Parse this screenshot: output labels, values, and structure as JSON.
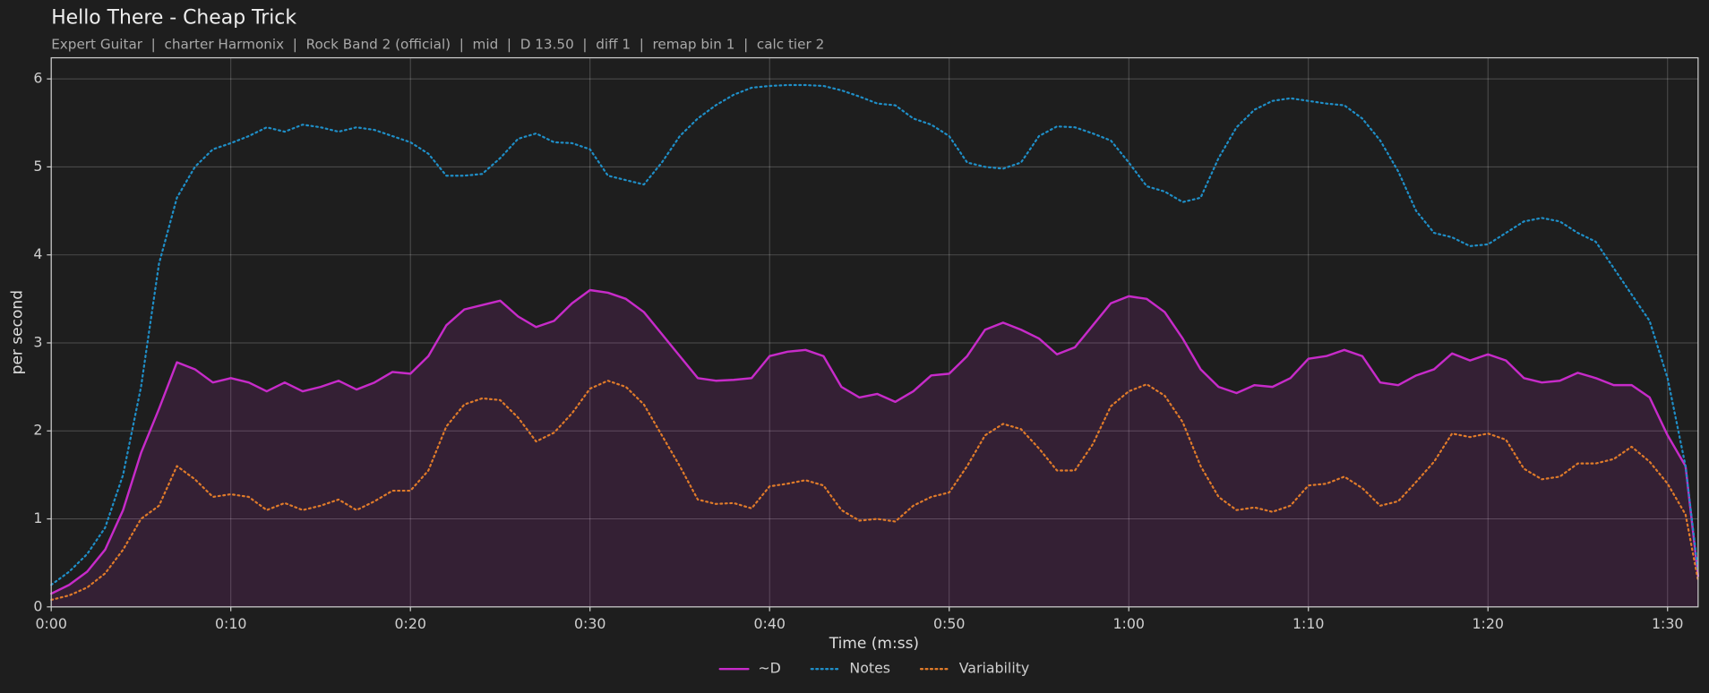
{
  "chart_data": {
    "type": "line",
    "title": "Hello There - Cheap Trick",
    "subtitle": "Expert Guitar  |  charter Harmonix  |  Rock Band 2 (official)  |  mid  |  D 13.50  |  diff 1  |  remap bin 1  |  calc tier 2",
    "xlabel": "Time (m:ss)",
    "ylabel": "per second",
    "x": [
      0,
      1,
      2,
      3,
      4,
      5,
      6,
      7,
      8,
      9,
      10,
      11,
      12,
      13,
      14,
      15,
      16,
      17,
      18,
      19,
      20,
      21,
      22,
      23,
      24,
      25,
      26,
      27,
      28,
      29,
      30,
      31,
      32,
      33,
      34,
      35,
      36,
      37,
      38,
      39,
      40,
      41,
      42,
      43,
      44,
      45,
      46,
      47,
      48,
      49,
      50,
      51,
      52,
      53,
      54,
      55,
      56,
      57,
      58,
      59,
      60,
      61,
      62,
      63,
      64,
      65,
      66,
      67,
      68,
      69,
      70,
      71,
      72,
      73,
      74,
      75,
      76,
      77,
      78,
      79,
      80,
      81,
      82,
      83,
      84,
      85,
      86,
      87,
      88,
      89,
      90,
      91,
      91.7
    ],
    "series": [
      {
        "name": "~D",
        "color": "#c72bc9",
        "style": "solid",
        "fill": true,
        "values": [
          0.15,
          0.25,
          0.4,
          0.65,
          1.1,
          1.75,
          2.25,
          2.78,
          2.7,
          2.55,
          2.6,
          2.55,
          2.45,
          2.55,
          2.45,
          2.5,
          2.57,
          2.47,
          2.55,
          2.67,
          2.65,
          2.85,
          3.2,
          3.38,
          3.43,
          3.48,
          3.3,
          3.18,
          3.25,
          3.45,
          3.6,
          3.57,
          3.5,
          3.35,
          3.1,
          2.85,
          2.6,
          2.57,
          2.58,
          2.6,
          2.85,
          2.9,
          2.92,
          2.85,
          2.5,
          2.38,
          2.42,
          2.33,
          2.45,
          2.63,
          2.65,
          2.85,
          3.15,
          3.23,
          3.15,
          3.05,
          2.87,
          2.95,
          3.2,
          3.45,
          3.53,
          3.5,
          3.35,
          3.05,
          2.7,
          2.5,
          2.43,
          2.52,
          2.5,
          2.6,
          2.82,
          2.85,
          2.92,
          2.85,
          2.55,
          2.52,
          2.63,
          2.7,
          2.88,
          2.8,
          2.87,
          2.8,
          2.6,
          2.55,
          2.57,
          2.66,
          2.6,
          2.52,
          2.52,
          2.38,
          1.95,
          1.6,
          0.35
        ]
      },
      {
        "name": "Notes",
        "color": "#1f8fc8",
        "style": "dotted",
        "fill": false,
        "values": [
          0.25,
          0.4,
          0.6,
          0.9,
          1.5,
          2.5,
          3.9,
          4.65,
          5.0,
          5.2,
          5.27,
          5.35,
          5.45,
          5.4,
          5.48,
          5.45,
          5.4,
          5.45,
          5.42,
          5.35,
          5.28,
          5.15,
          4.9,
          4.9,
          4.92,
          5.1,
          5.32,
          5.38,
          5.28,
          5.27,
          5.2,
          4.9,
          4.85,
          4.8,
          5.05,
          5.35,
          5.55,
          5.7,
          5.82,
          5.9,
          5.92,
          5.93,
          5.93,
          5.92,
          5.87,
          5.8,
          5.72,
          5.7,
          5.55,
          5.48,
          5.35,
          5.05,
          5.0,
          4.98,
          5.05,
          5.35,
          5.46,
          5.45,
          5.38,
          5.3,
          5.05,
          4.78,
          4.72,
          4.6,
          4.65,
          5.1,
          5.45,
          5.65,
          5.75,
          5.78,
          5.75,
          5.72,
          5.7,
          5.55,
          5.3,
          4.95,
          4.5,
          4.25,
          4.2,
          4.1,
          4.12,
          4.25,
          4.38,
          4.42,
          4.38,
          4.25,
          4.15,
          3.85,
          3.55,
          3.25,
          2.6,
          1.6,
          0.4
        ]
      },
      {
        "name": "Variability",
        "color": "#e07b2a",
        "style": "dotted",
        "fill": false,
        "values": [
          0.08,
          0.13,
          0.22,
          0.38,
          0.65,
          1.0,
          1.15,
          1.6,
          1.45,
          1.25,
          1.28,
          1.25,
          1.1,
          1.18,
          1.1,
          1.15,
          1.22,
          1.1,
          1.2,
          1.32,
          1.32,
          1.55,
          2.05,
          2.3,
          2.37,
          2.35,
          2.15,
          1.88,
          1.98,
          2.2,
          2.48,
          2.57,
          2.5,
          2.3,
          1.95,
          1.6,
          1.22,
          1.17,
          1.18,
          1.12,
          1.37,
          1.4,
          1.44,
          1.38,
          1.1,
          0.98,
          1.0,
          0.97,
          1.15,
          1.25,
          1.3,
          1.6,
          1.95,
          2.08,
          2.02,
          1.8,
          1.55,
          1.55,
          1.85,
          2.28,
          2.45,
          2.53,
          2.4,
          2.1,
          1.6,
          1.25,
          1.1,
          1.13,
          1.08,
          1.15,
          1.38,
          1.4,
          1.48,
          1.35,
          1.15,
          1.2,
          1.42,
          1.65,
          1.97,
          1.93,
          1.97,
          1.9,
          1.57,
          1.45,
          1.48,
          1.63,
          1.63,
          1.68,
          1.82,
          1.65,
          1.4,
          1.05,
          0.3
        ]
      }
    ],
    "xlim": [
      0,
      91.7
    ],
    "ylim": [
      0,
      6.24
    ],
    "xticks": [
      {
        "value": 0,
        "label": "0:00"
      },
      {
        "value": 10,
        "label": "0:10"
      },
      {
        "value": 20,
        "label": "0:20"
      },
      {
        "value": 30,
        "label": "0:30"
      },
      {
        "value": 40,
        "label": "0:40"
      },
      {
        "value": 50,
        "label": "0:50"
      },
      {
        "value": 60,
        "label": "1:00"
      },
      {
        "value": 70,
        "label": "1:10"
      },
      {
        "value": 80,
        "label": "1:20"
      },
      {
        "value": 90,
        "label": "1:30"
      }
    ],
    "yticks": [
      0,
      1,
      2,
      3,
      4,
      5,
      6
    ],
    "grid": true,
    "legend": "bottom"
  }
}
